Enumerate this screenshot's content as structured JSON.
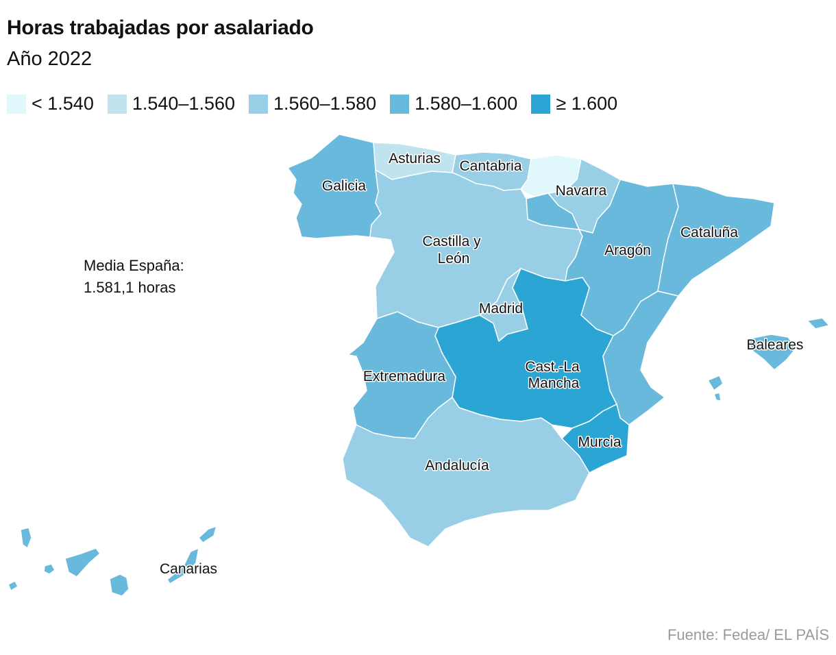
{
  "title": "Horas trabajadas por asalariado",
  "subtitle": "Año 2022",
  "colors": {
    "lt1540": "#e0f8fb",
    "r1540_1560": "#bfe4ef",
    "r1560_1580": "#98cfe6",
    "r1580_1600": "#68b9dc",
    "ge1600": "#2aa5d4"
  },
  "legend": [
    {
      "label": "< 1.540",
      "color_key": "lt1540"
    },
    {
      "label": "1.540–1.560",
      "color_key": "r1540_1560"
    },
    {
      "label": "1.560–1.580",
      "color_key": "r1560_1580"
    },
    {
      "label": "1.580–1.600",
      "color_key": "r1580_1600"
    },
    {
      "label": "≥ 1.600",
      "color_key": "ge1600"
    }
  ],
  "note": {
    "line1": "Media España:",
    "line2": "1.581,1 horas"
  },
  "regions": {
    "galicia": {
      "name": "Galicia",
      "class": "r1580_1600"
    },
    "asturias": {
      "name": "Asturias",
      "class": "r1540_1560"
    },
    "cantabria": {
      "name": "Cantabria",
      "class": "r1560_1580"
    },
    "pais_vasco": {
      "name": "",
      "class": "lt1540"
    },
    "navarra": {
      "name": "Navarra",
      "class": "r1560_1580"
    },
    "la_rioja": {
      "name": "",
      "class": "r1580_1600"
    },
    "aragon": {
      "name": "Aragón",
      "class": "r1580_1600"
    },
    "cataluna": {
      "name": "Cataluña",
      "class": "r1580_1600"
    },
    "castilla_leon": {
      "name_line1": "Castilla y",
      "name_line2": "León",
      "class": "r1560_1580"
    },
    "madrid": {
      "name": "Madrid",
      "class": "r1560_1580"
    },
    "castilla_la_mancha": {
      "name_line1": "Cast.-La",
      "name_line2": "Mancha",
      "class": "ge1600"
    },
    "valencia": {
      "name": "",
      "class": "r1580_1600"
    },
    "extremadura": {
      "name": "Extremadura",
      "class": "r1580_1600"
    },
    "andalucia": {
      "name": "Andalucía",
      "class": "r1560_1580"
    },
    "murcia": {
      "name": "Murcia",
      "class": "ge1600"
    },
    "baleares": {
      "name": "Baleares",
      "class": "r1580_1600"
    },
    "canarias": {
      "name": "Canarias",
      "class": "r1580_1600"
    }
  },
  "source": "Fuente: Fedea/ EL PAÍS"
}
